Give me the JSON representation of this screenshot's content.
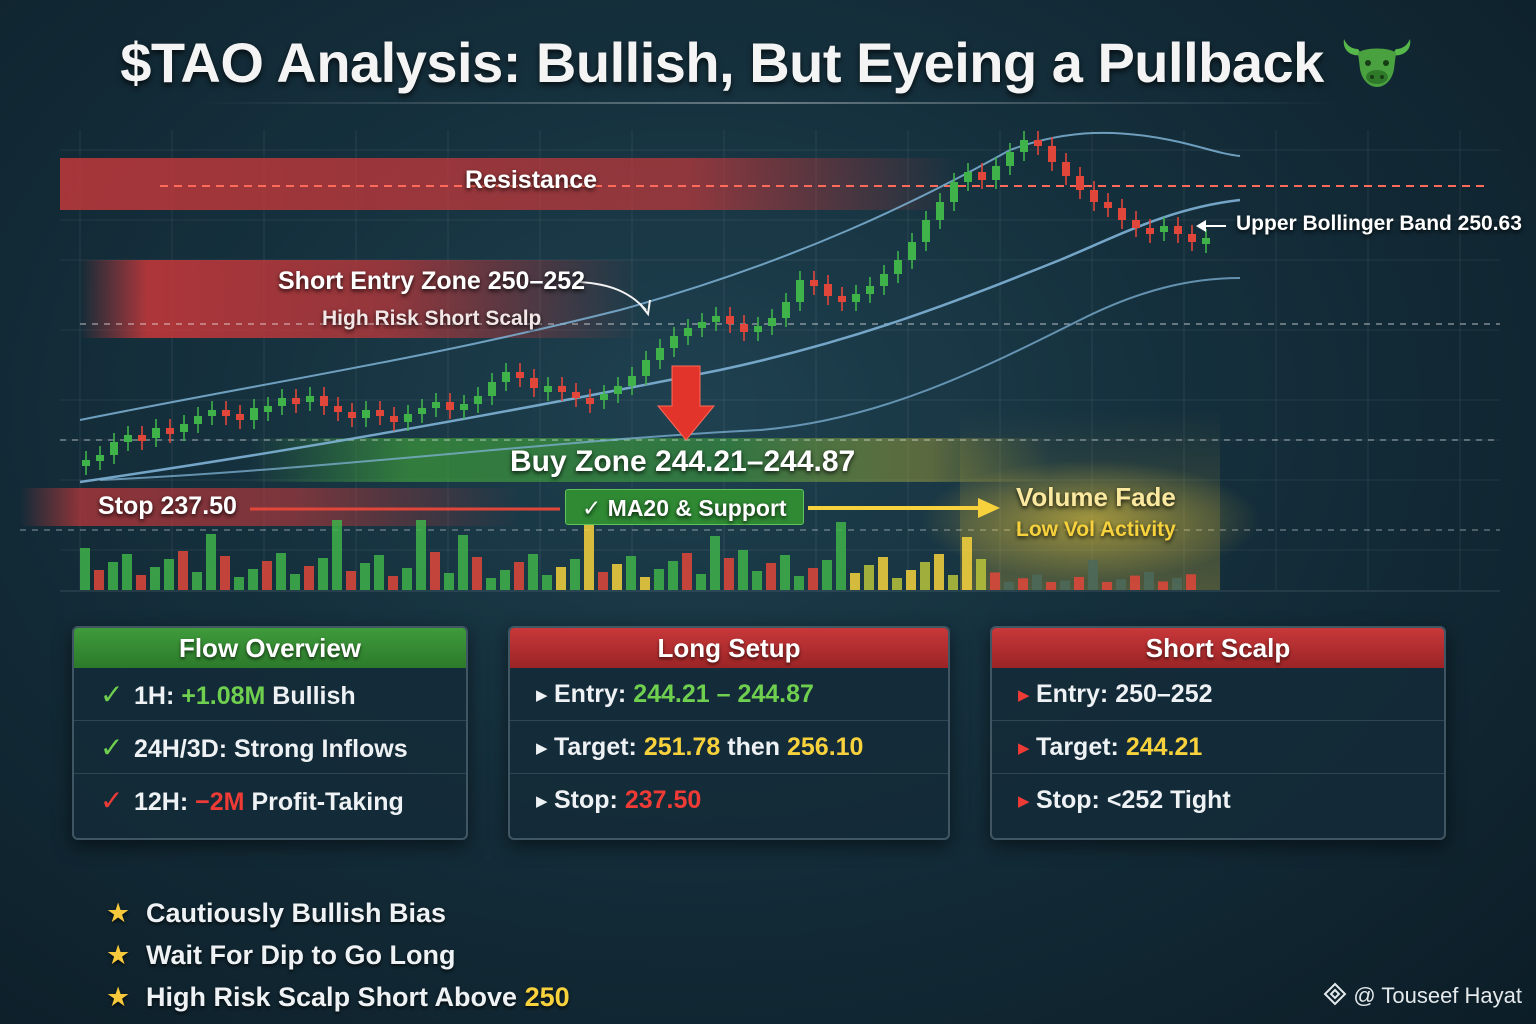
{
  "title": "$TAO Analysis: Bullish, But Eyeing a Pullback",
  "title_icon": "bull-icon",
  "colors": {
    "bull": "#3fb24a",
    "bear": "#e0463a",
    "zone_green": "#3d9a3b",
    "zone_red": "#c8383a",
    "accent_yellow": "#f7d23c",
    "band": "#7fb3d6"
  },
  "chart_data": {
    "type": "candlestick",
    "title": "",
    "xlabel": "",
    "ylabel": "",
    "levels": [
      {
        "name": "Resistance"
      },
      {
        "name": "Short Entry Zone 250–252",
        "low": 250,
        "high": 252
      },
      {
        "name": "Buy Zone 244.21–244.87",
        "low": 244.21,
        "high": 244.87
      },
      {
        "name": "Stop 237.50",
        "value": 237.5
      },
      {
        "name": "Upper Bollinger Band 250.63",
        "value": 250.63
      }
    ],
    "overlays": [
      "Upper Bollinger Band",
      "MA20",
      "Lower Bollinger Band"
    ],
    "annotations": {
      "resistance": "Resistance",
      "short_entry": "Short Entry Zone 250–252",
      "short_entry_sub": "High Risk Short Scalp",
      "buy_zone": "Buy Zone 244.21–244.87",
      "stop": "Stop 237.50",
      "ma20": "✓ MA20 & Support",
      "volume_fade": "Volume Fade",
      "volume_fade_sub": "Low Vol Activity",
      "upper_band": "Upper Bollinger Band 250.63"
    }
  },
  "panels": {
    "flow": {
      "title": "Flow Overview",
      "rows": [
        {
          "mark": "✓",
          "label": "1H:",
          "value": "+1.08M",
          "rest": "Bullish"
        },
        {
          "mark": "✓",
          "label": "24H/3D: Strong Inflows",
          "value": "",
          "rest": ""
        },
        {
          "mark": "✓",
          "label": "12H:",
          "value": "−2M",
          "rest": "Profit-Taking"
        }
      ]
    },
    "long": {
      "title": "Long Setup",
      "entry_label": "Entry:",
      "entry_value": "244.21 – 244.87",
      "target_label": "Target:",
      "target_value_1": "251.78",
      "target_then": "then",
      "target_value_2": "256.10",
      "stop_label": "Stop:",
      "stop_value": "237.50"
    },
    "short": {
      "title": "Short Scalp",
      "entry_label": "Entry:",
      "entry_value": "250–252",
      "target_label": "Target:",
      "target_value": "244.21",
      "stop_label": "Stop:",
      "stop_value": "<252",
      "stop_note": "Tight"
    }
  },
  "bias": [
    {
      "text": "Cautiously Bullish Bias",
      "highlight": ""
    },
    {
      "text": "Wait For Dip to Go Long",
      "highlight": ""
    },
    {
      "text": "High Risk Scalp Short Above",
      "highlight": "250"
    }
  ],
  "credit": "@ Touseef Hayat",
  "credit_icon": "diamond-logo-icon"
}
